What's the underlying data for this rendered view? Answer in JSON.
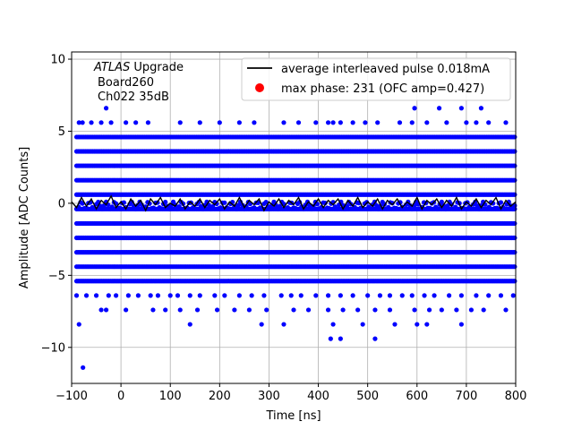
{
  "chart_data": {
    "type": "scatter",
    "title": "",
    "xlabel": "Time [ns]",
    "ylabel": "Amplitude [ADC Counts]",
    "xlim": [
      -100,
      800
    ],
    "ylim": [
      -12.5,
      10.5
    ],
    "xticks": [
      -100,
      0,
      100,
      200,
      300,
      400,
      500,
      600,
      700,
      800
    ],
    "yticks": [
      -10,
      -5,
      0,
      5,
      10
    ],
    "grid": true,
    "legend_position": "top-right",
    "annotation": {
      "line1_italic": "ATLAS",
      "line1_rest": " Upgrade",
      "line2": "Board260",
      "line3": "Ch022 35dB"
    },
    "colors": {
      "samples": "#0000ff",
      "average": "#000000",
      "max_phase": "#ff0000"
    },
    "series": [
      {
        "name": "average interleaved pulse 0.018mA",
        "kind": "line",
        "color": "#000000",
        "x": [
          -100,
          -90,
          -80,
          -70,
          -60,
          -50,
          -40,
          -30,
          -20,
          -10,
          0,
          10,
          20,
          30,
          40,
          50,
          60,
          70,
          80,
          90,
          100,
          110,
          120,
          130,
          140,
          150,
          160,
          170,
          180,
          190,
          200,
          210,
          220,
          230,
          240,
          250,
          260,
          270,
          280,
          290,
          300,
          310,
          320,
          330,
          340,
          350,
          360,
          370,
          380,
          390,
          400,
          410,
          420,
          430,
          440,
          450,
          460,
          470,
          480,
          490,
          500,
          510,
          520,
          530,
          540,
          550,
          560,
          570,
          580,
          590,
          600,
          610,
          620,
          630,
          640,
          650,
          660,
          670,
          680,
          690,
          700,
          710,
          720,
          730,
          740,
          750,
          760,
          770,
          780,
          790,
          800
        ],
        "y": [
          0.1,
          -0.3,
          0.4,
          -0.2,
          0.3,
          -0.4,
          0.2,
          -0.1,
          0.5,
          -0.3,
          0.1,
          -0.4,
          0.3,
          -0.2,
          0.2,
          -0.5,
          0.3,
          -0.1,
          0.4,
          -0.3,
          0.0,
          -0.2,
          0.3,
          -0.4,
          0.1,
          -0.2,
          0.3,
          -0.3,
          0.2,
          -0.1,
          0.3,
          -0.4,
          0.1,
          -0.2,
          0.4,
          -0.3,
          0.2,
          -0.1,
          0.3,
          -0.5,
          0.1,
          -0.2,
          0.3,
          -0.3,
          0.2,
          -0.1,
          0.4,
          -0.4,
          0.1,
          -0.2,
          0.3,
          -0.3,
          0.2,
          -0.1,
          0.3,
          -0.4,
          0.2,
          -0.2,
          0.4,
          -0.3,
          0.1,
          -0.2,
          0.3,
          -0.4,
          0.2,
          -0.1,
          0.3,
          -0.3,
          0.1,
          -0.2,
          0.4,
          -0.4,
          0.2,
          -0.1,
          0.3,
          -0.3,
          0.2,
          -0.2,
          0.4,
          -0.4,
          0.1,
          -0.2,
          0.3,
          -0.3,
          0.2,
          -0.1,
          0.4,
          -0.4,
          0.2,
          -0.2,
          0.1
        ]
      },
      {
        "name": "max phase: 231 (OFC amp=0.427)",
        "kind": "legend-only",
        "color": "#ff0000"
      },
      {
        "name": "",
        "kind": "scatter",
        "color": "#0000ff",
        "dense_levels": [
          4.6,
          3.6,
          2.6,
          1.6,
          0.6,
          -0.4,
          -1.4,
          -2.4,
          -3.4,
          -4.4,
          -5.4
        ],
        "dense_x_range": [
          -90,
          800
        ],
        "sparse_points": [
          [
            -85,
            5.6
          ],
          [
            -78,
            5.6
          ],
          [
            -60,
            5.6
          ],
          [
            -40,
            5.6
          ],
          [
            -20,
            5.6
          ],
          [
            10,
            5.6
          ],
          [
            30,
            5.6
          ],
          [
            55,
            5.6
          ],
          [
            120,
            5.6
          ],
          [
            160,
            5.6
          ],
          [
            200,
            5.6
          ],
          [
            240,
            5.6
          ],
          [
            270,
            5.6
          ],
          [
            330,
            5.6
          ],
          [
            360,
            5.6
          ],
          [
            395,
            5.6
          ],
          [
            420,
            5.6
          ],
          [
            430,
            5.6
          ],
          [
            445,
            5.6
          ],
          [
            470,
            5.6
          ],
          [
            495,
            5.6
          ],
          [
            520,
            5.6
          ],
          [
            565,
            5.6
          ],
          [
            590,
            5.6
          ],
          [
            620,
            5.6
          ],
          [
            660,
            5.6
          ],
          [
            700,
            5.6
          ],
          [
            720,
            5.6
          ],
          [
            745,
            5.6
          ],
          [
            780,
            5.6
          ],
          [
            -30,
            6.6
          ],
          [
            595,
            6.6
          ],
          [
            645,
            6.6
          ],
          [
            690,
            6.6
          ],
          [
            730,
            6.6
          ],
          [
            -90,
            -6.4
          ],
          [
            -70,
            -6.4
          ],
          [
            -50,
            -6.4
          ],
          [
            -25,
            -6.4
          ],
          [
            -10,
            -6.4
          ],
          [
            15,
            -6.4
          ],
          [
            35,
            -6.4
          ],
          [
            60,
            -6.4
          ],
          [
            75,
            -6.4
          ],
          [
            100,
            -6.4
          ],
          [
            115,
            -6.4
          ],
          [
            140,
            -6.4
          ],
          [
            160,
            -6.4
          ],
          [
            190,
            -6.4
          ],
          [
            210,
            -6.4
          ],
          [
            240,
            -6.4
          ],
          [
            265,
            -6.4
          ],
          [
            290,
            -6.4
          ],
          [
            325,
            -6.4
          ],
          [
            345,
            -6.4
          ],
          [
            365,
            -6.4
          ],
          [
            395,
            -6.4
          ],
          [
            420,
            -6.4
          ],
          [
            445,
            -6.4
          ],
          [
            470,
            -6.4
          ],
          [
            500,
            -6.4
          ],
          [
            525,
            -6.4
          ],
          [
            545,
            -6.4
          ],
          [
            570,
            -6.4
          ],
          [
            590,
            -6.4
          ],
          [
            615,
            -6.4
          ],
          [
            635,
            -6.4
          ],
          [
            665,
            -6.4
          ],
          [
            690,
            -6.4
          ],
          [
            720,
            -6.4
          ],
          [
            745,
            -6.4
          ],
          [
            770,
            -6.4
          ],
          [
            795,
            -6.4
          ],
          [
            -40,
            -7.4
          ],
          [
            -30,
            -7.4
          ],
          [
            10,
            -7.4
          ],
          [
            65,
            -7.4
          ],
          [
            90,
            -7.4
          ],
          [
            120,
            -7.4
          ],
          [
            155,
            -7.4
          ],
          [
            195,
            -7.4
          ],
          [
            230,
            -7.4
          ],
          [
            260,
            -7.4
          ],
          [
            295,
            -7.4
          ],
          [
            350,
            -7.4
          ],
          [
            380,
            -7.4
          ],
          [
            420,
            -7.4
          ],
          [
            450,
            -7.4
          ],
          [
            480,
            -7.4
          ],
          [
            515,
            -7.4
          ],
          [
            545,
            -7.4
          ],
          [
            595,
            -7.4
          ],
          [
            625,
            -7.4
          ],
          [
            650,
            -7.4
          ],
          [
            680,
            -7.4
          ],
          [
            710,
            -7.4
          ],
          [
            735,
            -7.4
          ],
          [
            780,
            -7.4
          ],
          [
            -85,
            -8.4
          ],
          [
            140,
            -8.4
          ],
          [
            285,
            -8.4
          ],
          [
            330,
            -8.4
          ],
          [
            430,
            -8.4
          ],
          [
            490,
            -8.4
          ],
          [
            555,
            -8.4
          ],
          [
            600,
            -8.4
          ],
          [
            620,
            -8.4
          ],
          [
            690,
            -8.4
          ],
          [
            425,
            -9.4
          ],
          [
            445,
            -9.4
          ],
          [
            515,
            -9.4
          ],
          [
            -77,
            -11.4
          ]
        ]
      }
    ]
  }
}
